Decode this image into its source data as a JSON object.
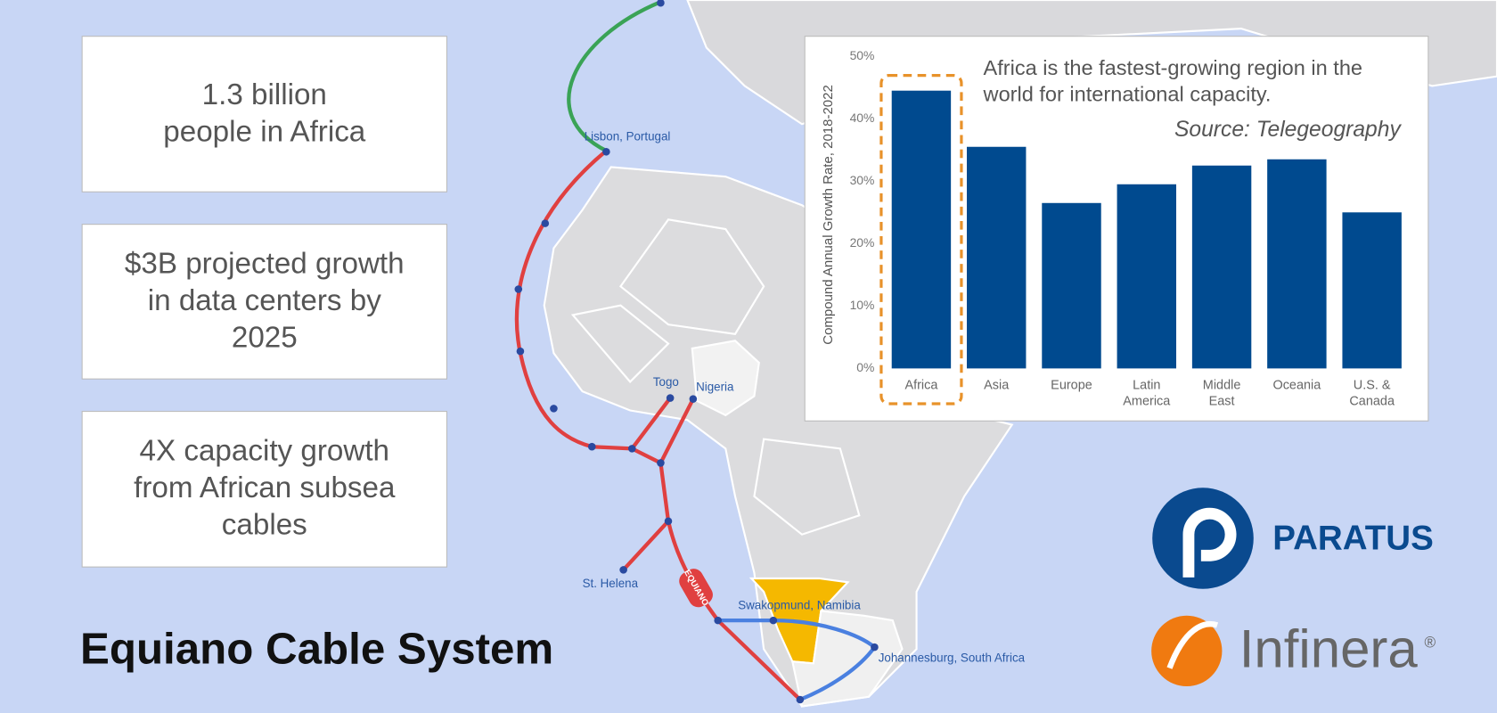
{
  "stats": [
    "1.3 billion\npeople in Africa",
    "$3B projected growth\nin data centers by\n2025",
    "4X capacity growth\nfrom African subsea\ncables"
  ],
  "title": "Equiano Cable System",
  "map": {
    "labels": [
      "Lisbon, Portugal",
      "Togo",
      "Nigeria",
      "St. Helena",
      "Swakopmund, Namibia",
      "Johannesburg, South Africa"
    ],
    "cable_name": "EQUIANO"
  },
  "logos": {
    "paratus": "PARATUS",
    "infinera": "Infinera",
    "registered": "®"
  },
  "chart_data": {
    "type": "bar",
    "title": "Africa is the fastest-growing region in the\nworld for international capacity.",
    "subtitle": "Source: Telegeography",
    "y_label": "Compound Annual Growth Rate, 2018-2022",
    "categories": [
      "Africa",
      "Asia",
      "Europe",
      "Latin\nAmerica",
      "Middle\nEast",
      "Oceania",
      "U.S. &\nCanada"
    ],
    "values": [
      44.5,
      35.5,
      26.5,
      29.5,
      32.5,
      33.5,
      25
    ],
    "color": "#004a8f",
    "highlight_color": "#e8922a",
    "ylim": [
      0,
      50
    ],
    "yticks": [
      {
        "value": 0,
        "label": "0%"
      },
      {
        "value": 10,
        "label": "10%"
      },
      {
        "value": 20,
        "label": "20%"
      },
      {
        "value": 30,
        "label": "30%"
      },
      {
        "value": 40,
        "label": "40%"
      },
      {
        "value": 50,
        "label": "50%"
      }
    ]
  }
}
